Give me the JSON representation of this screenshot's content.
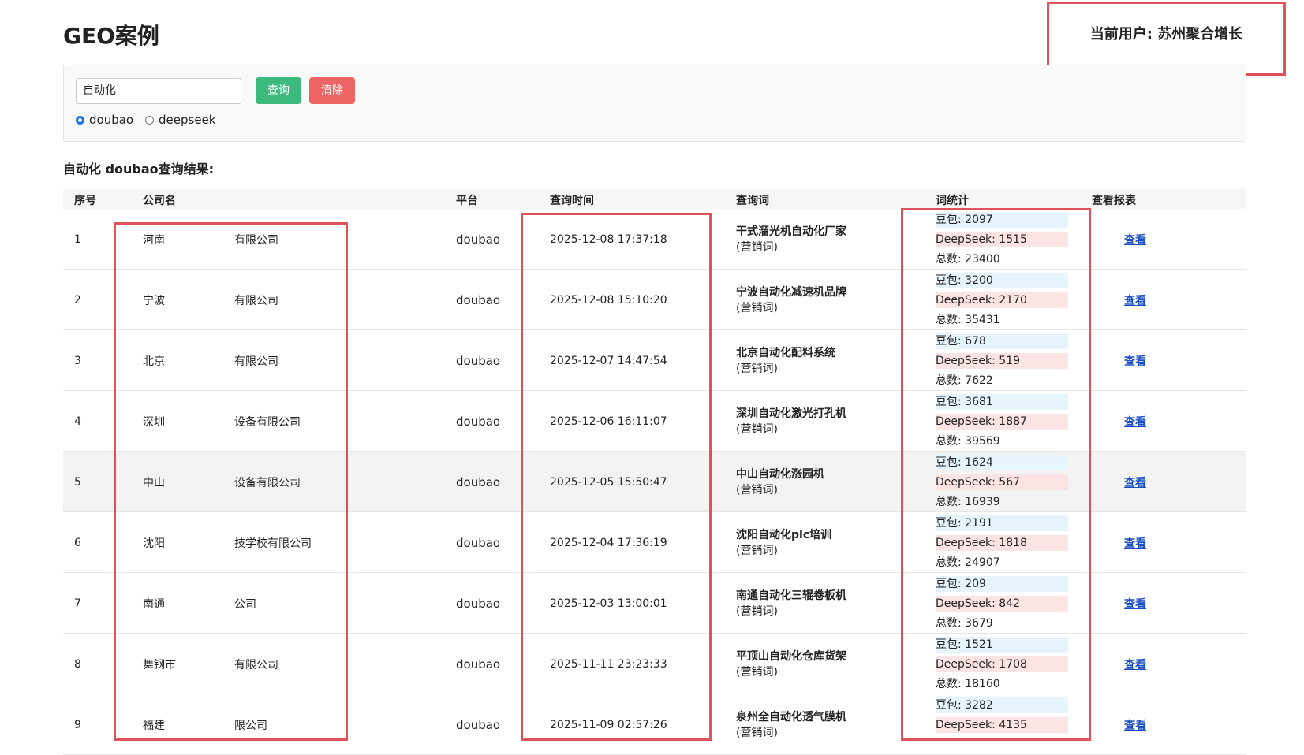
{
  "header": {
    "title": "GEO案例",
    "current_user": "当前用户: 苏州聚合增长"
  },
  "search": {
    "input": "自动化",
    "query_button": "查询",
    "clear_button": "清除",
    "options": [
      "doubao",
      "deepseek"
    ],
    "selected": 0
  },
  "results": {
    "title": "自动化 doubao查询结果:",
    "columns": [
      "序号",
      "公司名",
      "平台",
      "查询时间",
      "查询词",
      "词统计",
      "查看报表"
    ],
    "rows": [
      {
        "index": "1",
        "company": [
          "河南",
          "有限公司"
        ],
        "platform": "doubao",
        "time": "2025-12-08 17:37:18",
        "keyword": "干式溜光机自动化厂家",
        "note": "(营销词)",
        "stats": [
          "豆包: 2097",
          "DeepSeek: 1515",
          "总数: 23400"
        ],
        "link": "查看"
      },
      {
        "index": "2",
        "company": [
          "宁波",
          "有限公司"
        ],
        "platform": "doubao",
        "time": "2025-12-08 15:10:20",
        "keyword": "宁波自动化减速机品牌",
        "note": "(营销词)",
        "stats": [
          "豆包: 3200",
          "DeepSeek: 2170",
          "总数: 35431"
        ],
        "link": "查看"
      },
      {
        "index": "3",
        "company": [
          "北京",
          "有限公司"
        ],
        "platform": "doubao",
        "time": "2025-12-07 14:47:54",
        "keyword": "北京自动化配料系统",
        "note": "(营销词)",
        "stats": [
          "豆包: 678",
          "DeepSeek: 519",
          "总数: 7622"
        ],
        "link": "查看"
      },
      {
        "index": "4",
        "company": [
          "深圳",
          "设备有限公司"
        ],
        "platform": "doubao",
        "time": "2025-12-06 16:11:07",
        "keyword": "深圳自动化激光打孔机",
        "note": "(营销词)",
        "stats": [
          "豆包: 3681",
          "DeepSeek: 1887",
          "总数: 39569"
        ],
        "link": "查看"
      },
      {
        "index": "5",
        "company": [
          "中山",
          "设备有限公司"
        ],
        "platform": "doubao",
        "time": "2025-12-05 15:50:47",
        "keyword": "中山自动化涨园机",
        "note": "(营销词)",
        "stats": [
          "豆包: 1624",
          "DeepSeek: 567",
          "总数: 16939"
        ],
        "link": "查看"
      },
      {
        "index": "6",
        "company": [
          "沈阳",
          "技学校有限公司"
        ],
        "platform": "doubao",
        "time": "2025-12-04 17:36:19",
        "keyword": "沈阳自动化plc培训",
        "note": "(营销词)",
        "stats": [
          "豆包: 2191",
          "DeepSeek: 1818",
          "总数: 24907"
        ],
        "link": "查看"
      },
      {
        "index": "7",
        "company": [
          "南通",
          "公司"
        ],
        "platform": "doubao",
        "time": "2025-12-03 13:00:01",
        "keyword": "南通自动化三辊卷板机",
        "note": "(营销词)",
        "stats": [
          "豆包: 209",
          "DeepSeek: 842",
          "总数: 3679"
        ],
        "link": "查看"
      },
      {
        "index": "8",
        "company": [
          "舞钢市",
          "有限公司"
        ],
        "platform": "doubao",
        "time": "2025-11-11 23:23:33",
        "keyword": "平顶山自动化仓库货架",
        "note": "(营销词)",
        "stats": [
          "豆包: 1521",
          "DeepSeek: 1708",
          "总数: 18160"
        ],
        "link": "查看"
      },
      {
        "index": "9",
        "company": [
          "福建",
          "限公司"
        ],
        "platform": "doubao",
        "time": "2025-11-09 02:57:26",
        "keyword": "泉州全自动化透气膜机",
        "note": "(营销词)",
        "stats": [
          "豆包: 3282",
          "DeepSeek: 4135"
        ],
        "link": "查看"
      }
    ]
  }
}
